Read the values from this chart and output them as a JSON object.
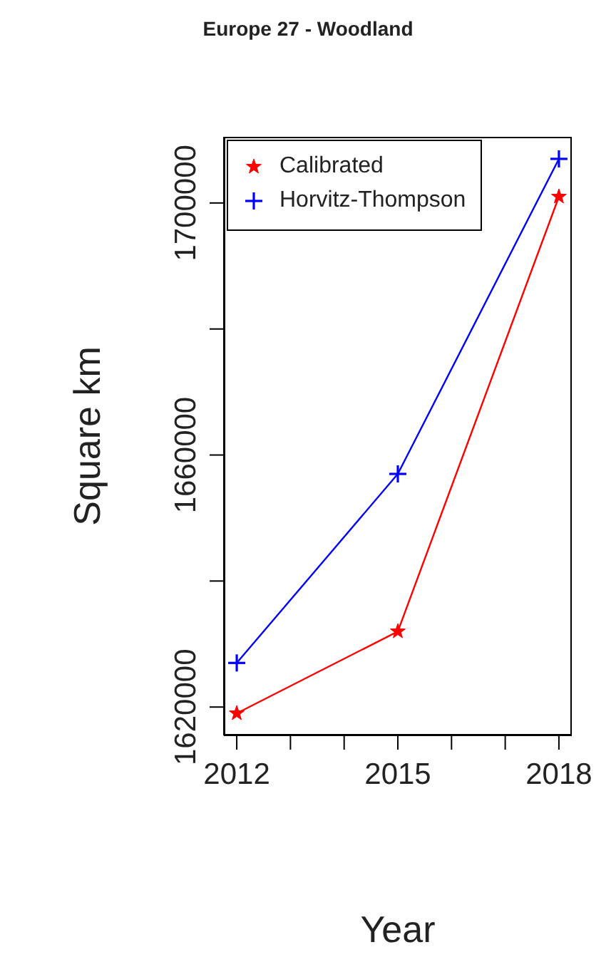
{
  "chart_data": {
    "type": "line",
    "title": "Europe 27 - Woodland",
    "xlabel": "Year",
    "ylabel": "Square km",
    "x": [
      2012,
      2015,
      2018
    ],
    "series": [
      {
        "name": "Calibrated",
        "color": "#ff0000",
        "marker": "star",
        "values": [
          1619000,
          1632000,
          1701000
        ]
      },
      {
        "name": "Horvitz-Thompson",
        "color": "#0000ff",
        "marker": "cross",
        "values": [
          1627000,
          1657000,
          1707000
        ]
      }
    ],
    "xlim": [
      2011.76,
      2018.24
    ],
    "xticks": [
      2012,
      {
        "value": 2013,
        "label": null
      },
      {
        "value": 2014,
        "label": null
      },
      2015,
      {
        "value": 2016,
        "label": null
      },
      {
        "value": 2017,
        "label": null
      },
      2018
    ],
    "ylim": [
      1615500,
      1710500
    ],
    "yticks": [
      1620000,
      {
        "value": 1640000,
        "label": null
      },
      1660000,
      {
        "value": 1680000,
        "label": null
      },
      1700000
    ],
    "legend": "top left",
    "line_style": "solid"
  }
}
